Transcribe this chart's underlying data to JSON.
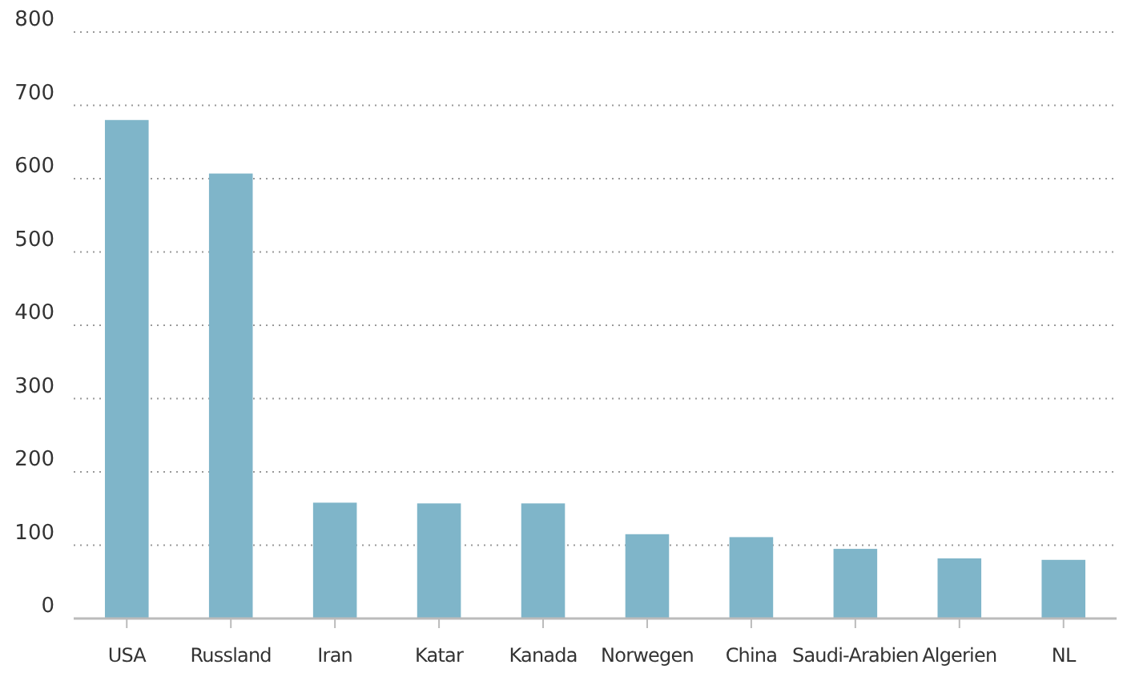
{
  "chart_data": {
    "type": "bar",
    "categories": [
      "USA",
      "Russland",
      "Iran",
      "Katar",
      "Kanada",
      "Norwegen",
      "China",
      "Saudi-Arabien",
      "Algerien",
      "NL"
    ],
    "values": [
      680,
      607,
      158,
      157,
      157,
      115,
      111,
      95,
      82,
      80
    ],
    "color": "#7fb5c9",
    "ylim": [
      0,
      800
    ],
    "yticks": [
      0,
      100,
      200,
      300,
      400,
      500,
      600,
      700,
      800
    ],
    "grid": "y"
  }
}
